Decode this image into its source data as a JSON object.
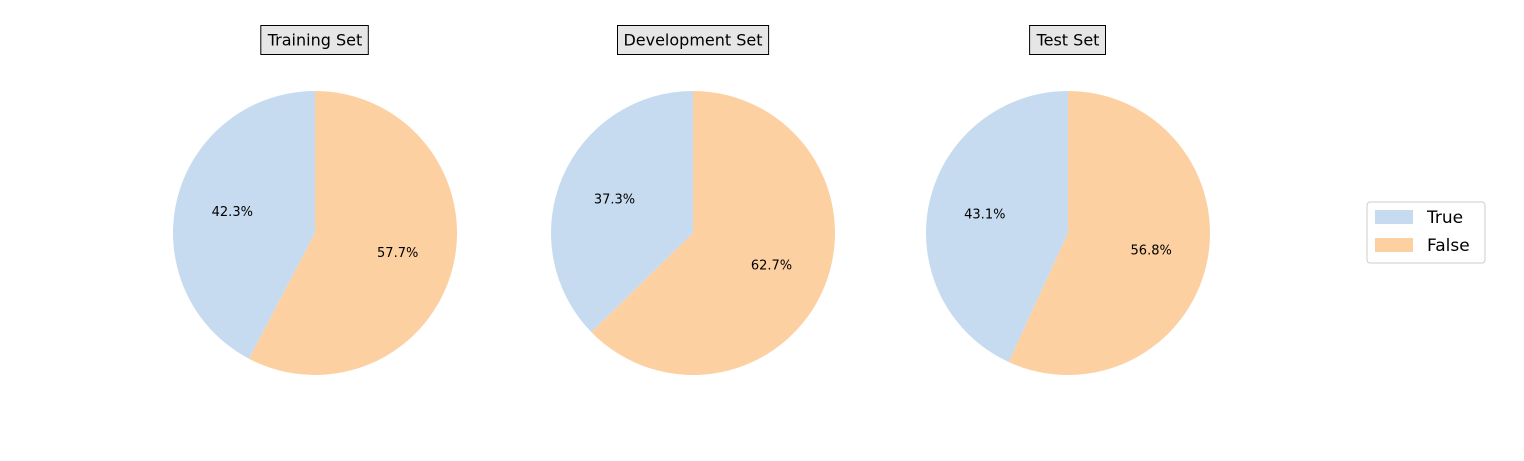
{
  "chart_data": [
    {
      "type": "pie",
      "title": "Training Set",
      "labels": [
        "True",
        "False"
      ],
      "values": [
        42.3,
        57.7
      ],
      "value_labels": [
        "42.3%",
        "57.7%"
      ]
    },
    {
      "type": "pie",
      "title": "Development Set",
      "labels": [
        "True",
        "False"
      ],
      "values": [
        37.3,
        62.7
      ],
      "value_labels": [
        "37.3%",
        "62.7%"
      ]
    },
    {
      "type": "pie",
      "title": "Test Set",
      "labels": [
        "True",
        "False"
      ],
      "values": [
        43.1,
        56.8
      ],
      "value_labels": [
        "43.1%",
        "56.8%"
      ]
    }
  ],
  "legend": {
    "placement": "right",
    "entries": [
      {
        "label": "True",
        "color": "#c6dbef"
      },
      {
        "label": "False",
        "color": "#fdd0a2"
      }
    ]
  },
  "colors": {
    "True": "#c6dbef",
    "False": "#fdd0a2",
    "title_box_fill": "#e6e6e6",
    "title_box_edge": "#000000"
  }
}
